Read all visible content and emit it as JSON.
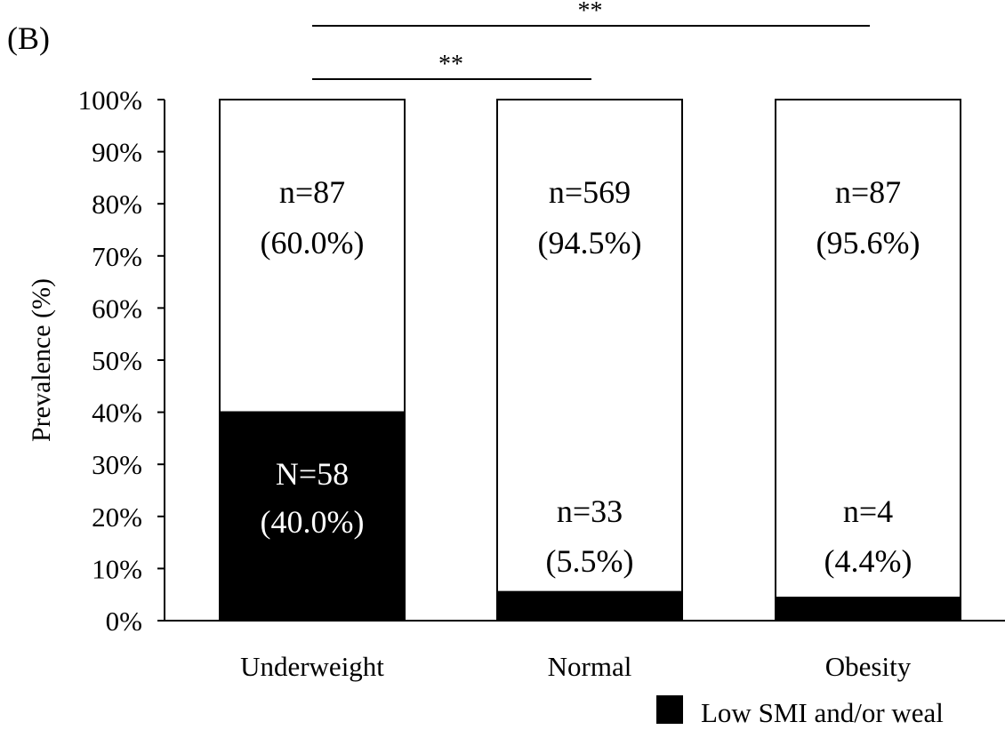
{
  "panel_label": "(B)",
  "significance": [
    {
      "from": "Underweight",
      "to": "Obesity",
      "label": "**"
    },
    {
      "from": "Underweight",
      "to": "Normal",
      "label": "**"
    }
  ],
  "colors": {
    "low": "#000000",
    "normal": "#ffffff",
    "stroke": "#000000",
    "text_on_dark": "#ffffff",
    "text": "#000000"
  },
  "chart_data": {
    "type": "bar",
    "stacked": true,
    "ylabel": "Prevalence (%)",
    "ylim": [
      0,
      100
    ],
    "yticks": [
      "0%",
      "10%",
      "20%",
      "30%",
      "40%",
      "50%",
      "60%",
      "70%",
      "80%",
      "90%",
      "100%"
    ],
    "categories": [
      "Underweight",
      "Normal",
      "Obesity"
    ],
    "series": [
      {
        "name": "Low SMI and/or weal",
        "values": [
          40.0,
          5.5,
          4.4
        ],
        "labels": [
          [
            "N=58",
            "(40.0%)"
          ],
          [
            "n=33",
            "(5.5%)"
          ],
          [
            "n=4",
            "(4.4%)"
          ]
        ]
      },
      {
        "values": [
          60.0,
          94.5,
          95.6
        ],
        "labels": [
          [
            "n=87",
            "(60.0%)"
          ],
          [
            "n=569",
            "(94.5%)"
          ],
          [
            "n=87",
            "(95.6%)"
          ]
        ]
      }
    ],
    "legend": {
      "position": "bottom-right",
      "entries": [
        "Low SMI and/or weal"
      ]
    }
  }
}
